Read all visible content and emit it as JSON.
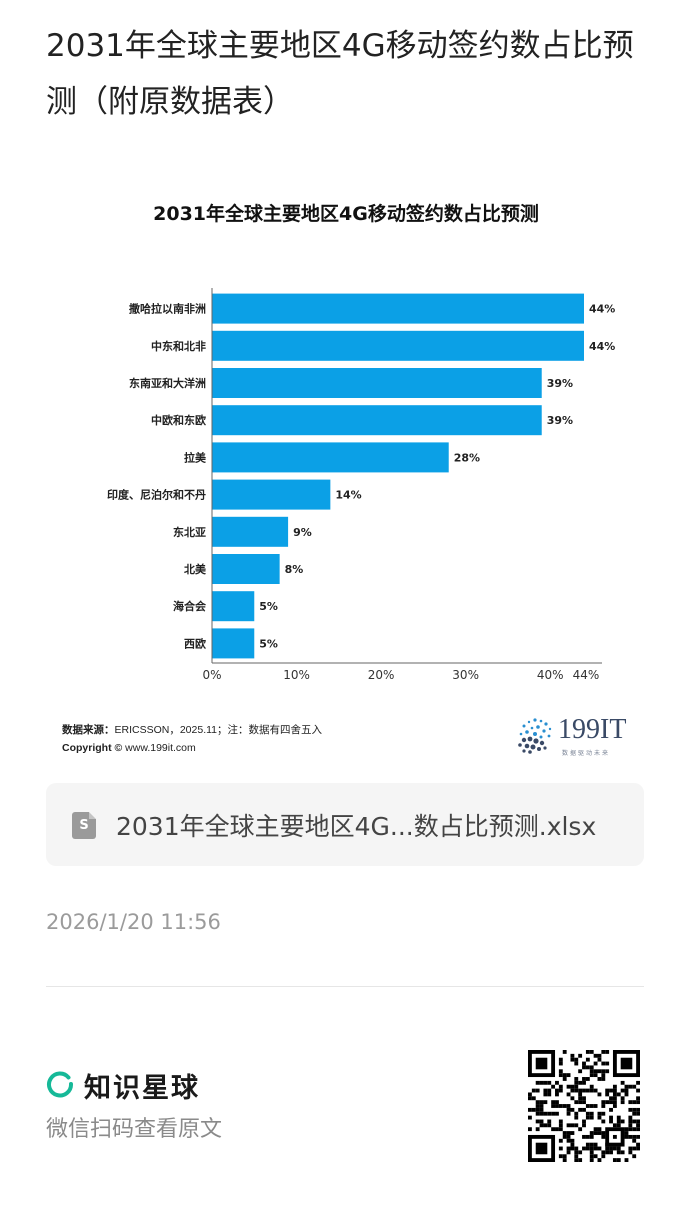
{
  "post": {
    "title": "2031年全球主要地区4G移动签约数占比预测（附原数据表）",
    "time": "2026/1/20 11:56"
  },
  "chart_data": {
    "type": "bar",
    "orientation": "horizontal",
    "title": "2031年全球主要地区4G移动签约数占比预测",
    "categories": [
      "撒哈拉以南非洲",
      "中东和北非",
      "东南亚和大洋洲",
      "中欧和东欧",
      "拉美",
      "印度、尼泊尔和不丹",
      "东北亚",
      "北美",
      "海合会",
      "西欧"
    ],
    "values": [
      44,
      44,
      39,
      39,
      28,
      14,
      9,
      8,
      5,
      5
    ],
    "value_labels": [
      "44%",
      "44%",
      "39%",
      "39%",
      "28%",
      "14%",
      "9%",
      "8%",
      "5%",
      "5%"
    ],
    "x_ticks": [
      "0%",
      "10%",
      "20%",
      "30%",
      "40%",
      "44%"
    ],
    "x_tick_values": [
      0,
      10,
      20,
      30,
      40,
      44
    ],
    "xlim": [
      0,
      44
    ],
    "bar_color": "#0ba0e6",
    "grid": false,
    "legend": "none"
  },
  "chart_footer": {
    "source_label": "数据来源：",
    "source_text": "ERICSSON，2025.11；注：数据有四舍五入",
    "copyright_label": "Copyright ©",
    "copyright_text": " www.199it.com",
    "brand": "199IT",
    "brand_sub": "数据驱动未来"
  },
  "file": {
    "icon": "spreadsheet-file-icon",
    "icon_letter": "S",
    "name": "2031年全球主要地区4G...数占比预测.xlsx"
  },
  "footer": {
    "app_name": "知识星球",
    "hint": "微信扫码查看原文",
    "accent_color": "#16b998"
  }
}
